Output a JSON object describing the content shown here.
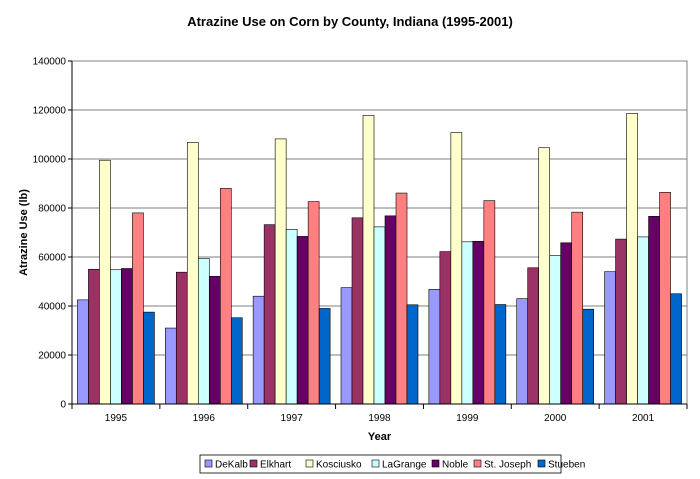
{
  "chart_data": {
    "type": "bar",
    "title": "Atrazine Use on Corn by County, Indiana (1995-2001)",
    "xlabel": "Year",
    "ylabel": "Atrazine Use (lb)",
    "ylim": [
      0,
      140000
    ],
    "yticks": [
      "0",
      "20000",
      "40000",
      "60000",
      "80000",
      "100000",
      "120000",
      "140000"
    ],
    "grid": true,
    "legend_position": "bottom",
    "categories": [
      "1995",
      "1996",
      "1997",
      "1998",
      "1999",
      "2000",
      "2001"
    ],
    "series": [
      {
        "name": "DeKalb",
        "color": "#9999ff",
        "values": [
          42500,
          31000,
          44000,
          47500,
          46800,
          43000,
          54000
        ]
      },
      {
        "name": "Elkhart",
        "color": "#993366",
        "values": [
          55000,
          53800,
          73200,
          76000,
          62200,
          55600,
          67300
        ]
      },
      {
        "name": "Kosciusko",
        "color": "#ffffcc",
        "values": [
          99500,
          106800,
          108200,
          117800,
          110800,
          104600,
          118600
        ]
      },
      {
        "name": "LaGrange",
        "color": "#ccffff",
        "values": [
          54800,
          59400,
          71300,
          72300,
          66200,
          60600,
          68200
        ]
      },
      {
        "name": "Noble",
        "color": "#660066",
        "values": [
          55300,
          52100,
          68400,
          76800,
          66400,
          65800,
          76600
        ]
      },
      {
        "name": "St. Joseph",
        "color": "#ff8080",
        "values": [
          78000,
          88000,
          82600,
          86100,
          83000,
          78300,
          86400
        ]
      },
      {
        "name": "Stueben",
        "color": "#0066cc",
        "values": [
          37500,
          35200,
          39000,
          40500,
          40600,
          38700,
          45000
        ]
      }
    ]
  }
}
